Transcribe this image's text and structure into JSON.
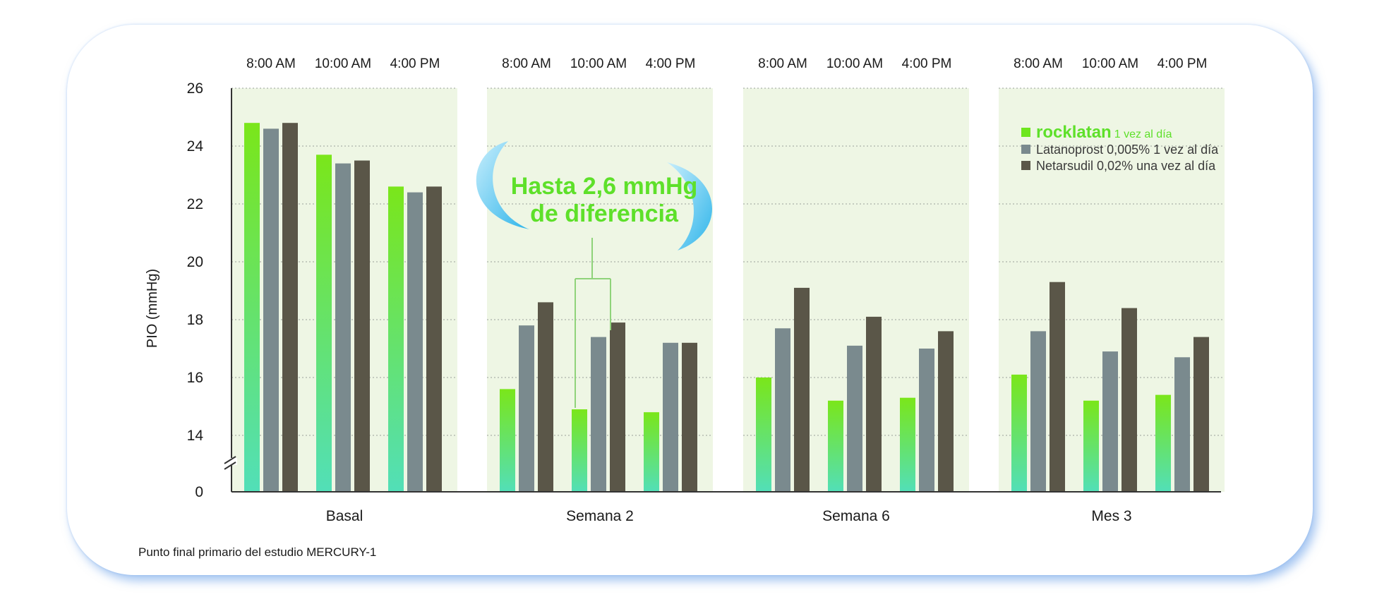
{
  "chart_data": {
    "type": "bar",
    "ylabel": "PIO (mmHg)",
    "ylim": [
      12,
      26
    ],
    "y_ticks": [
      "26",
      "24",
      "22",
      "20",
      "18",
      "16",
      "14",
      "0"
    ],
    "y_axis_break": true,
    "grid": true,
    "groups": [
      "Basal",
      "Semana 2",
      "Semana 6",
      "Mes 3"
    ],
    "time_points": [
      "8:00 AM",
      "10:00 AM",
      "4:00 PM"
    ],
    "series": [
      {
        "name": "rocklatan",
        "name_suffix": "1 vez al día",
        "color": "#6ee61e",
        "values": [
          [
            24.8,
            23.7,
            22.6
          ],
          [
            15.6,
            14.9,
            14.8
          ],
          [
            16.0,
            15.2,
            15.3
          ],
          [
            16.1,
            15.2,
            15.4
          ]
        ]
      },
      {
        "name": "Latanoprost 0,005% 1 vez al día",
        "color": "#7a8a8e",
        "values": [
          [
            24.6,
            23.4,
            22.4
          ],
          [
            17.8,
            17.4,
            17.2
          ],
          [
            17.7,
            17.1,
            17.0
          ],
          [
            17.6,
            16.9,
            16.7
          ]
        ]
      },
      {
        "name": "Netarsudil 0,02% una vez al día",
        "color": "#5a5648",
        "values": [
          [
            24.8,
            23.5,
            22.6
          ],
          [
            18.6,
            17.9,
            17.2
          ],
          [
            19.1,
            18.1,
            17.6
          ],
          [
            19.3,
            18.4,
            17.4
          ]
        ]
      }
    ],
    "annotation": {
      "line1": "Hasta 2,6 mmHg",
      "line2": "de diferencia"
    },
    "legend_position": "top-right"
  },
  "footnote": "Punto final primario del estudio MERCURY-1",
  "colors": {
    "panel_bg": "#eef6e4",
    "accent_green": "#5ee02a",
    "bubble_blue": "#5ec8f0"
  }
}
